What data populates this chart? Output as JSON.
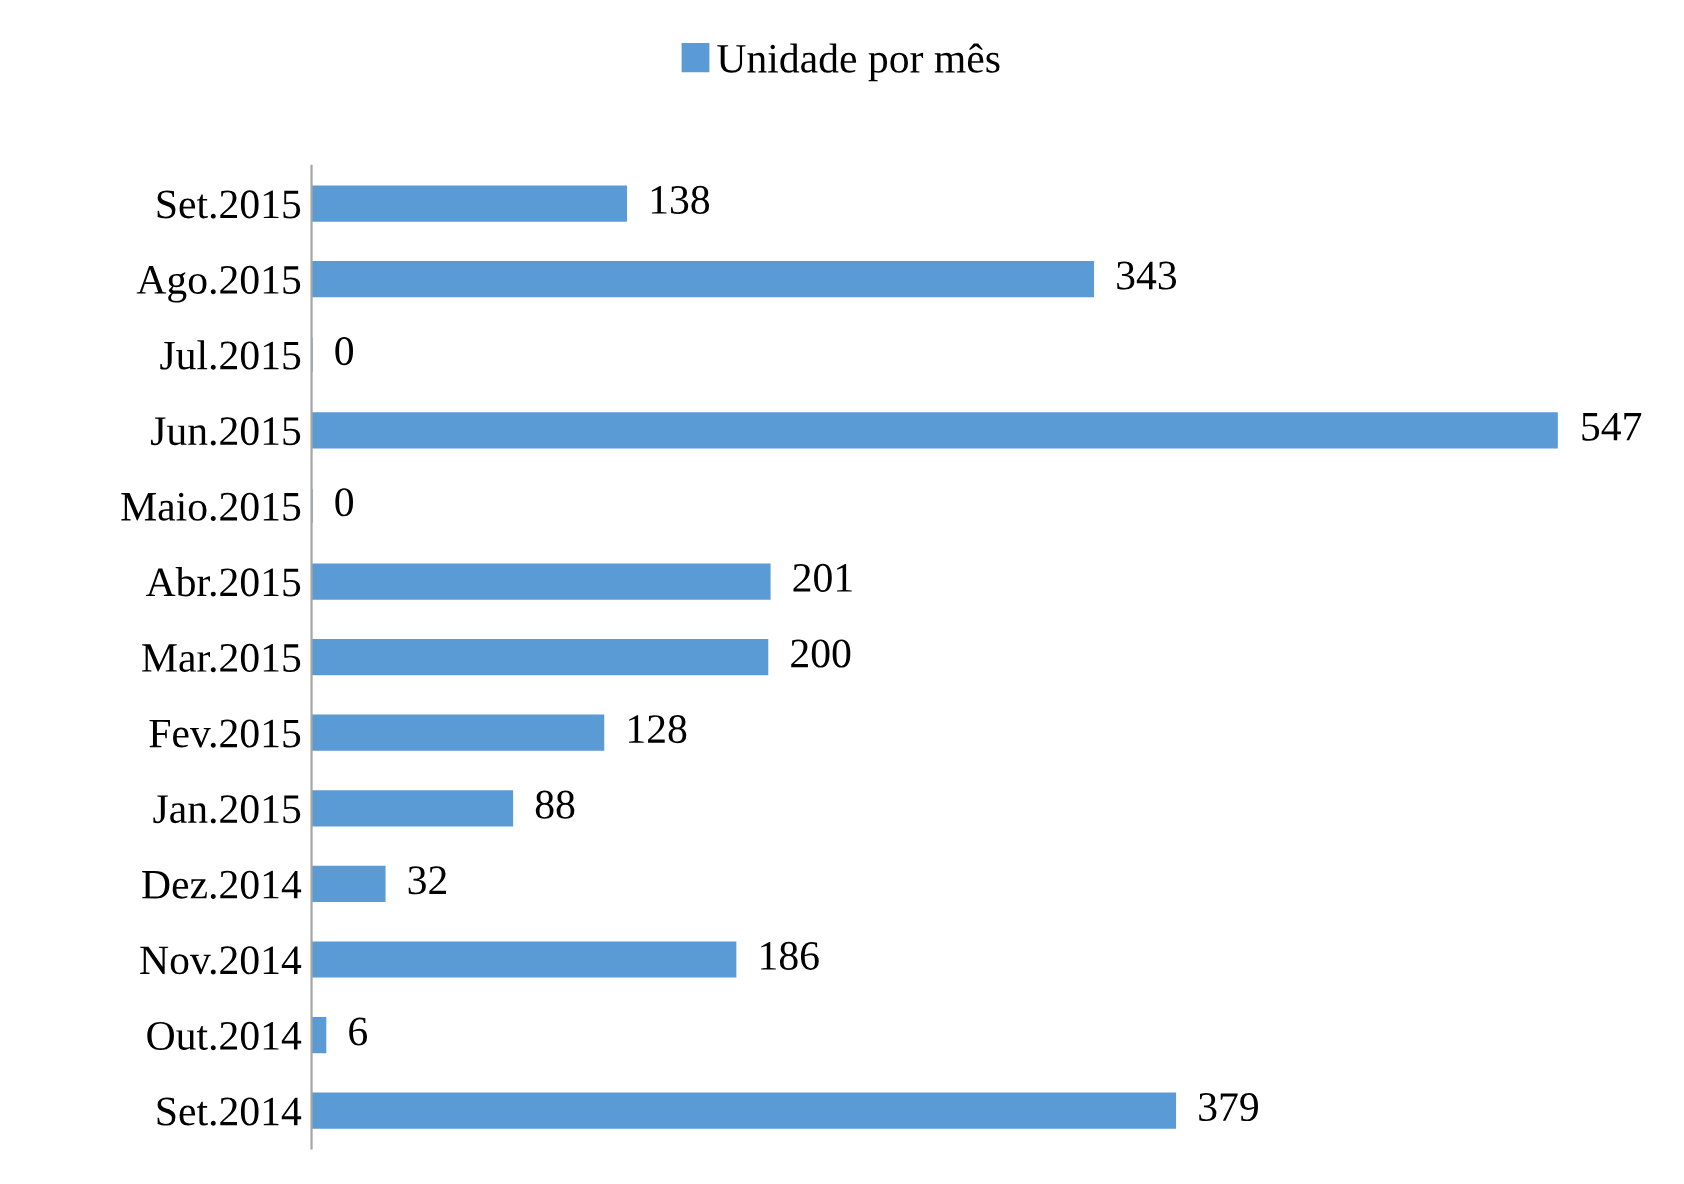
{
  "chart_data": {
    "type": "bar",
    "orientation": "horizontal",
    "categories": [
      "Set.2015",
      "Ago.2015",
      "Jul.2015",
      "Jun.2015",
      "Maio.2015",
      "Abr.2015",
      "Mar.2015",
      "Fev.2015",
      "Jan.2015",
      "Dez.2014",
      "Nov.2014",
      "Out.2014",
      "Set.2014"
    ],
    "series": [
      {
        "name": "Unidade por mês",
        "color": "#5b9bd5",
        "values": [
          138,
          343,
          0,
          547,
          0,
          201,
          200,
          128,
          88,
          32,
          186,
          6,
          379
        ]
      }
    ],
    "data_labels": true,
    "legend": "top",
    "grid": false
  }
}
